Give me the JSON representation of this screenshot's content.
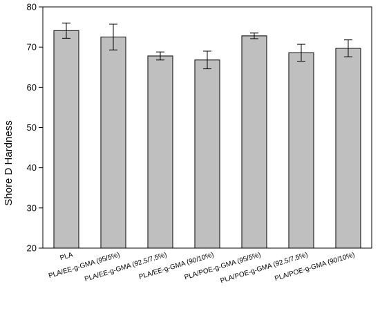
{
  "chart_data": {
    "type": "bar",
    "categories": [
      "PLA",
      "PLA/EE-g-GMA (95/5%)",
      "PLA/EE-g-GMA (92.5/7.5%)",
      "PLA/EE-g-GMA (90/10%)",
      "PLA/POE-g-GMA (95/5%)",
      "PLA/POE-g-GMA (92.5/7.5%)",
      "PLA/POE-g-GMA (90/10%)"
    ],
    "values": [
      74.1,
      72.5,
      67.8,
      66.8,
      72.8,
      68.6,
      69.7
    ],
    "errors": [
      1.9,
      3.2,
      1.0,
      2.2,
      0.7,
      2.1,
      2.1
    ],
    "title": "",
    "xlabel": "",
    "ylabel": "Shore D Hardness",
    "ylim": [
      20,
      80
    ],
    "yticks": [
      20,
      30,
      40,
      50,
      60,
      70,
      80
    ],
    "colors": {
      "bar": "#bfbfbf",
      "bar_edge": "#000000",
      "error_bar": "#000000"
    },
    "grid": false,
    "legend": "none"
  }
}
